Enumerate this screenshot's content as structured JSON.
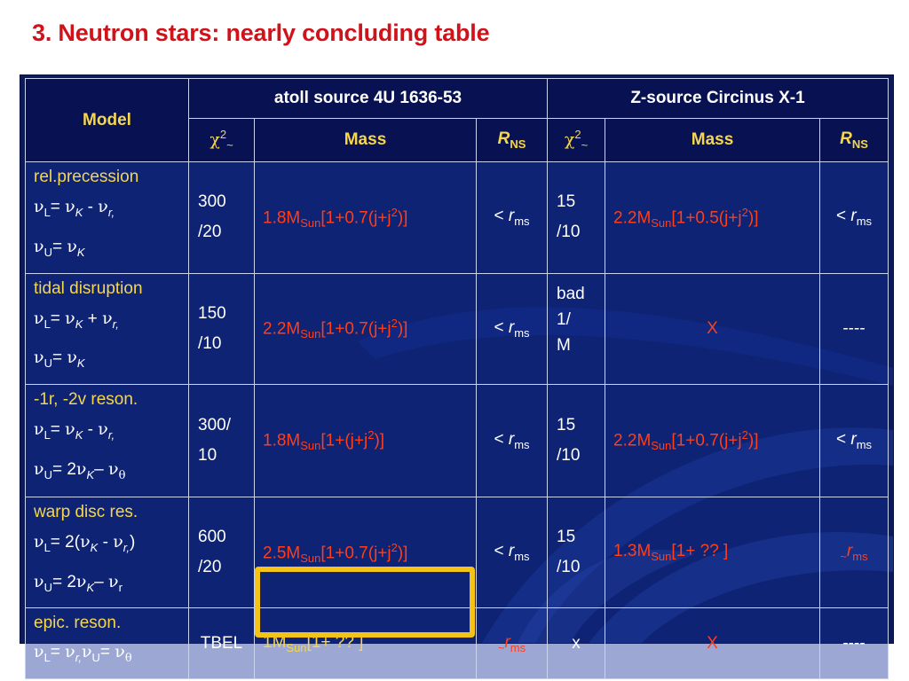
{
  "slide": {
    "title": "3. Neutron stars:  nearly concluding table"
  },
  "header": {
    "model": "Model",
    "atoll": "atoll source 4U 1636-53",
    "zsource": "Z-source Circinus X-1",
    "chi": "χ",
    "chi_sup": "2",
    "tilde": "~",
    "mass": "Mass",
    "r": "R",
    "ns": "NS"
  },
  "sym": {
    "nu": "ν",
    "theta": "θ",
    "L": "L",
    "U": "U",
    "K": "K",
    "r": "r",
    "r_comma": "r,",
    "eq": "= ",
    "minus": " - ",
    "plus": " + ",
    "dash": "– ",
    "two": "2",
    "open2": "= 2(",
    "close": ")",
    "comma": ",",
    "M": "M",
    "Sun": "Sun",
    "lt": "< ",
    "ms": "ms",
    "tilde": "~",
    "j2": "2"
  },
  "rows": [
    {
      "name": "rel.precession",
      "atoll_chi": [
        "300",
        "/20"
      ],
      "atoll_mass_prefix": "1.8",
      "atoll_mass_rest": "[1+0.7(j+j",
      "atoll_mass_end": ")]",
      "z_chi": [
        "15",
        "/10"
      ],
      "z_mass_prefix": "2.2",
      "z_mass_rest": "[1+0.5(j+j",
      "z_mass_end": ")]"
    },
    {
      "name": "tidal disruption",
      "atoll_chi": [
        "150",
        "/10"
      ],
      "atoll_mass_prefix": "2.2",
      "atoll_mass_rest": "[1+0.7(j+j",
      "atoll_mass_end": ")]",
      "z_chi": [
        "bad",
        "1/",
        "M"
      ],
      "z_mass": "X",
      "z_r": "----"
    },
    {
      "name": "-1r, -2v reson.",
      "atoll_chi": [
        "300/",
        "10"
      ],
      "atoll_mass_prefix": "1.8",
      "atoll_mass_rest": "[1+(j+j",
      "atoll_mass_end": ")]",
      "z_chi": [
        "15",
        "/10"
      ],
      "z_mass_prefix": "2.2",
      "z_mass_rest": "[1+0.7(j+j",
      "z_mass_end": ")]"
    },
    {
      "name": "warp disc res.",
      "atoll_chi": [
        "600",
        "/20"
      ],
      "atoll_mass_prefix": "2.5",
      "atoll_mass_rest": "[1+0.7(j+j",
      "atoll_mass_end": ")]",
      "z_chi": [
        "15",
        "/10"
      ],
      "z_mass_prefix": "1.3",
      "z_mass_rest": "[1+ ?? ]"
    },
    {
      "name": "epic. reson.",
      "atoll_chi": [
        "TBEL"
      ],
      "atoll_mass_prefix": "1",
      "atoll_mass_rest": "[1+ ?? ]",
      "z_chi": [
        "x"
      ],
      "z_mass": "X",
      "z_r": "----"
    }
  ],
  "colors": {
    "title": "#d0121b",
    "yellow": "#f6d64a",
    "red": "#ff3e1a",
    "table_bg": "#0b1a5c",
    "highlight": "#f5c217"
  }
}
